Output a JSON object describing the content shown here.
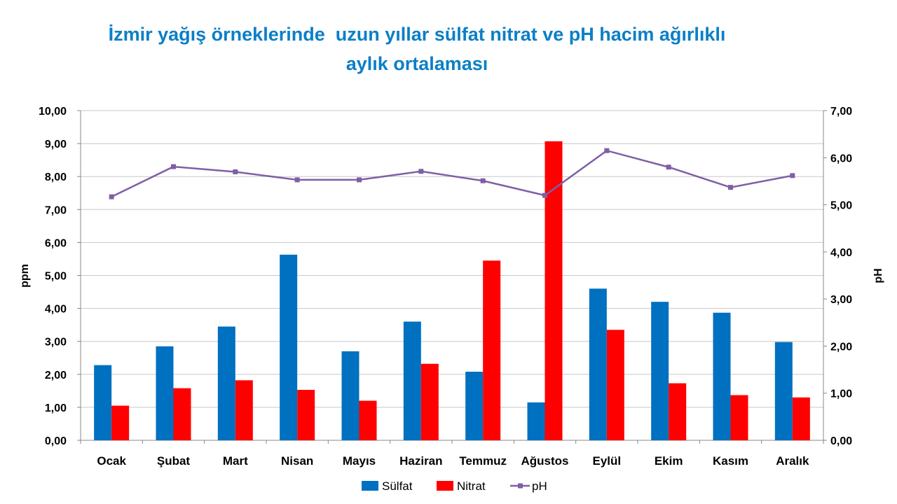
{
  "chart_data": {
    "type": "bar",
    "title_line1": "İzmir yağış örneklerinde  uzun yıllar sülfat nitrat ve pH hacim ağırlıklı",
    "title_line2": "aylık ortalaması",
    "ylabel": "ppm",
    "y2label": "pH",
    "ylim": [
      0,
      10
    ],
    "y2lim": [
      0,
      7
    ],
    "y_ticks": [
      "0,00",
      "1,00",
      "2,00",
      "3,00",
      "4,00",
      "5,00",
      "6,00",
      "7,00",
      "8,00",
      "9,00",
      "10,00"
    ],
    "y2_ticks": [
      "0,00",
      "1,00",
      "2,00",
      "3,00",
      "4,00",
      "5,00",
      "6,00",
      "7,00"
    ],
    "categories": [
      "Ocak",
      "Şubat",
      "Mart",
      "Nisan",
      "Mayıs",
      "Haziran",
      "Temmuz",
      "Ağustos",
      "Eylül",
      "Ekim",
      "Kasım",
      "Aralık"
    ],
    "series": [
      {
        "name": "Sülfat",
        "type": "bar",
        "axis": "left",
        "color": "#0070c0",
        "values": [
          2.28,
          2.85,
          3.45,
          5.63,
          2.7,
          3.6,
          2.08,
          1.15,
          4.6,
          4.2,
          3.87,
          2.98
        ]
      },
      {
        "name": "Nitrat",
        "type": "bar",
        "axis": "left",
        "color": "#ff0000",
        "values": [
          1.05,
          1.58,
          1.82,
          1.53,
          1.2,
          2.32,
          5.45,
          9.07,
          3.35,
          1.73,
          1.37,
          1.3
        ]
      },
      {
        "name": "pH",
        "type": "line",
        "axis": "right",
        "color": "#7f5fa6",
        "values": [
          5.17,
          5.81,
          5.7,
          5.53,
          5.53,
          5.71,
          5.51,
          5.2,
          6.15,
          5.8,
          5.37,
          5.62
        ]
      }
    ],
    "grid": true,
    "legend": "bottom"
  }
}
